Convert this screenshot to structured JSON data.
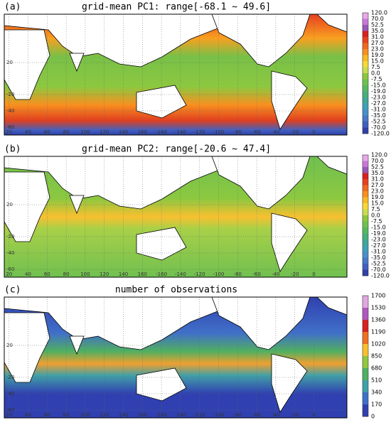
{
  "panels": [
    {
      "label": "(a)",
      "title": "grid-mean PC1: range[-68.1 ~ 49.6]",
      "colorbar": {
        "labels": [
          "120.0",
          "70.0",
          "52.5",
          "35.0",
          "31.0",
          "27.0",
          "23.0",
          "19.0",
          "15.0",
          "7.5",
          "0.0",
          "-7.5",
          "-15.0",
          "-19.0",
          "-23.0",
          "-27.0",
          "-31.0",
          "-35.0",
          "-52.5",
          "-70.0",
          "-120.0"
        ],
        "colors": [
          "#e8a8e8",
          "#c878d8",
          "#9858b8",
          "#d82020",
          "#e84020",
          "#f06820",
          "#f89020",
          "#f8b828",
          "#f8d838",
          "#c8dc50",
          "#8cc840",
          "#70c050",
          "#58b860",
          "#48b078",
          "#40a898",
          "#40a0b8",
          "#4890c8",
          "#4878c8",
          "#4060c0",
          "#3040a8"
        ]
      }
    },
    {
      "label": "(b)",
      "title": "grid-mean PC2: range[-20.6 ~ 47.4]",
      "colorbar": {
        "labels": [
          "120.0",
          "70.0",
          "52.5",
          "35.0",
          "31.0",
          "27.0",
          "23.0",
          "19.0",
          "15.0",
          "7.5",
          "0.0",
          "-7.5",
          "-15.0",
          "-19.0",
          "-23.0",
          "-27.0",
          "-31.0",
          "-35.0",
          "-52.5",
          "-70.0",
          "-120.0"
        ],
        "colors": [
          "#e8a8e8",
          "#c878d8",
          "#9858b8",
          "#d82020",
          "#e84020",
          "#f06820",
          "#f89020",
          "#f8b828",
          "#f8d838",
          "#c8dc50",
          "#8cc840",
          "#70c050",
          "#58b860",
          "#48b078",
          "#40a898",
          "#40a0b8",
          "#4890c8",
          "#4878c8",
          "#4060c0",
          "#3040a8"
        ]
      }
    },
    {
      "label": "(c)",
      "title": "number of observations",
      "colorbar": {
        "labels": [
          "1700",
          "1530",
          "1360",
          "1190",
          "1020",
          "850",
          "680",
          "510",
          "340",
          "170",
          "0"
        ],
        "colors": [
          "#e0a8e0",
          "#b058c0",
          "#d82020",
          "#f07020",
          "#f8c030",
          "#90c840",
          "#50b060",
          "#40a0a8",
          "#4070c8",
          "#3040b0"
        ]
      }
    }
  ],
  "map_axes": {
    "lon_labels": [
      "20",
      "40",
      "60",
      "80",
      "100",
      "120",
      "140",
      "160",
      "-160",
      "-140",
      "-120",
      "-100",
      "-80",
      "-60",
      "-40",
      "-20",
      "0"
    ],
    "lat_labels": [
      "20",
      "-20",
      "-40",
      "-60"
    ]
  }
}
